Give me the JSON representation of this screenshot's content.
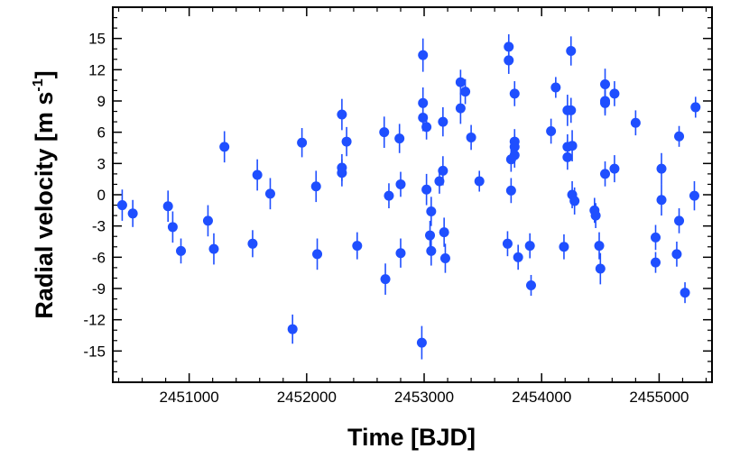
{
  "chart_data": {
    "type": "scatter",
    "title": "",
    "xlabel": "Time [BJD]",
    "ylabel_main": "Radial velocity [m s",
    "ylabel_sup": "-1",
    "ylabel_end": "]",
    "xlim": [
      2450350,
      2455450
    ],
    "ylim": [
      -18,
      18
    ],
    "xticks": [
      2451000,
      2452000,
      2453000,
      2454000,
      2455000
    ],
    "yticks": [
      15,
      12,
      9,
      6,
      3,
      0,
      -3,
      -6,
      -9,
      -12,
      -15
    ],
    "xminor_step": 200,
    "yminor_step": 1,
    "grid": false,
    "marker_color": "#1f4fff",
    "errorbar_color": "#1f4fff",
    "points": [
      {
        "x": 2450430,
        "y": -1.0,
        "err": 1.5
      },
      {
        "x": 2450520,
        "y": -1.8,
        "err": 1.3
      },
      {
        "x": 2450820,
        "y": -1.1,
        "err": 1.5
      },
      {
        "x": 2450860,
        "y": -3.1,
        "err": 1.5
      },
      {
        "x": 2450930,
        "y": -5.4,
        "err": 1.2
      },
      {
        "x": 2451160,
        "y": -2.5,
        "err": 1.5
      },
      {
        "x": 2451210,
        "y": -5.2,
        "err": 1.5
      },
      {
        "x": 2451300,
        "y": 4.6,
        "err": 1.5
      },
      {
        "x": 2451540,
        "y": -4.7,
        "err": 1.3
      },
      {
        "x": 2451580,
        "y": 1.9,
        "err": 1.5
      },
      {
        "x": 2451690,
        "y": 0.1,
        "err": 1.5
      },
      {
        "x": 2451880,
        "y": -12.9,
        "err": 1.4
      },
      {
        "x": 2451960,
        "y": 5.0,
        "err": 1.4
      },
      {
        "x": 2452080,
        "y": 0.8,
        "err": 1.5
      },
      {
        "x": 2452090,
        "y": -5.7,
        "err": 1.5
      },
      {
        "x": 2452300,
        "y": 7.7,
        "err": 1.5
      },
      {
        "x": 2452300,
        "y": 2.6,
        "err": 1.3
      },
      {
        "x": 2452300,
        "y": 2.1,
        "err": 1.3
      },
      {
        "x": 2452340,
        "y": 5.1,
        "err": 1.4
      },
      {
        "x": 2452430,
        "y": -4.9,
        "err": 1.3
      },
      {
        "x": 2452660,
        "y": 6.0,
        "err": 1.5
      },
      {
        "x": 2452670,
        "y": -8.1,
        "err": 1.5
      },
      {
        "x": 2452700,
        "y": -0.1,
        "err": 1.2
      },
      {
        "x": 2452790,
        "y": 5.4,
        "err": 1.4
      },
      {
        "x": 2452800,
        "y": 1.0,
        "err": 1.2
      },
      {
        "x": 2452800,
        "y": -5.6,
        "err": 1.4
      },
      {
        "x": 2452980,
        "y": -14.2,
        "err": 1.6
      },
      {
        "x": 2452990,
        "y": 13.4,
        "err": 1.6
      },
      {
        "x": 2452990,
        "y": 8.8,
        "err": 1.5
      },
      {
        "x": 2452990,
        "y": 7.4,
        "err": 1.3
      },
      {
        "x": 2453020,
        "y": 6.5,
        "err": 1.2
      },
      {
        "x": 2453020,
        "y": 0.5,
        "err": 1.5
      },
      {
        "x": 2453050,
        "y": -3.9,
        "err": 1.4
      },
      {
        "x": 2453060,
        "y": -1.6,
        "err": 1.4
      },
      {
        "x": 2453060,
        "y": -5.4,
        "err": 1.4
      },
      {
        "x": 2453130,
        "y": 1.3,
        "err": 1.2
      },
      {
        "x": 2453160,
        "y": 2.3,
        "err": 1.4
      },
      {
        "x": 2453160,
        "y": 7.0,
        "err": 1.4
      },
      {
        "x": 2453170,
        "y": -3.6,
        "err": 1.4
      },
      {
        "x": 2453180,
        "y": -6.1,
        "err": 1.4
      },
      {
        "x": 2453310,
        "y": 10.8,
        "err": 1.2
      },
      {
        "x": 2453310,
        "y": 8.3,
        "err": 1.5
      },
      {
        "x": 2453350,
        "y": 9.9,
        "err": 1.2
      },
      {
        "x": 2453400,
        "y": 5.5,
        "err": 1.2
      },
      {
        "x": 2453470,
        "y": 1.3,
        "err": 1.0
      },
      {
        "x": 2453720,
        "y": 14.2,
        "err": 1.2
      },
      {
        "x": 2453720,
        "y": 12.9,
        "err": 1.3
      },
      {
        "x": 2453710,
        "y": -4.7,
        "err": 1.2
      },
      {
        "x": 2453740,
        "y": 0.4,
        "err": 1.2
      },
      {
        "x": 2453740,
        "y": 3.4,
        "err": 1.2
      },
      {
        "x": 2453770,
        "y": 9.7,
        "err": 1.2
      },
      {
        "x": 2453770,
        "y": 5.1,
        "err": 1.2
      },
      {
        "x": 2453770,
        "y": 4.6,
        "err": 1.2
      },
      {
        "x": 2453770,
        "y": 3.8,
        "err": 1.2
      },
      {
        "x": 2453800,
        "y": -6.0,
        "err": 1.2
      },
      {
        "x": 2453900,
        "y": -4.9,
        "err": 1.2
      },
      {
        "x": 2453910,
        "y": -8.7,
        "err": 1.0
      },
      {
        "x": 2454080,
        "y": 6.1,
        "err": 1.2
      },
      {
        "x": 2454120,
        "y": 10.3,
        "err": 1.0
      },
      {
        "x": 2454190,
        "y": -5.0,
        "err": 1.2
      },
      {
        "x": 2454220,
        "y": 8.1,
        "err": 1.5
      },
      {
        "x": 2454220,
        "y": 4.6,
        "err": 1.2
      },
      {
        "x": 2454220,
        "y": 3.6,
        "err": 1.2
      },
      {
        "x": 2454250,
        "y": 13.8,
        "err": 1.4
      },
      {
        "x": 2454250,
        "y": 8.1,
        "err": 1.2
      },
      {
        "x": 2454260,
        "y": 4.7,
        "err": 1.5
      },
      {
        "x": 2454260,
        "y": 0.0,
        "err": 1.3
      },
      {
        "x": 2454280,
        "y": -0.6,
        "err": 1.3
      },
      {
        "x": 2454450,
        "y": -1.5,
        "err": 1.2
      },
      {
        "x": 2454460,
        "y": -2.0,
        "err": 1.2
      },
      {
        "x": 2454490,
        "y": -4.9,
        "err": 1.3
      },
      {
        "x": 2454500,
        "y": -7.1,
        "err": 1.5
      },
      {
        "x": 2454540,
        "y": 10.6,
        "err": 1.5
      },
      {
        "x": 2454540,
        "y": 9.0,
        "err": 1.2
      },
      {
        "x": 2454540,
        "y": 8.8,
        "err": 1.2
      },
      {
        "x": 2454540,
        "y": 2.0,
        "err": 1.2
      },
      {
        "x": 2454620,
        "y": 9.7,
        "err": 1.2
      },
      {
        "x": 2454620,
        "y": 2.5,
        "err": 1.3
      },
      {
        "x": 2454800,
        "y": 6.9,
        "err": 1.2
      },
      {
        "x": 2454970,
        "y": -4.1,
        "err": 1.2
      },
      {
        "x": 2454970,
        "y": -6.5,
        "err": 1.0
      },
      {
        "x": 2455020,
        "y": 2.5,
        "err": 1.5
      },
      {
        "x": 2455020,
        "y": -0.5,
        "err": 1.5
      },
      {
        "x": 2455170,
        "y": 5.6,
        "err": 1.0
      },
      {
        "x": 2455170,
        "y": -2.5,
        "err": 1.2
      },
      {
        "x": 2455150,
        "y": -5.7,
        "err": 1.2
      },
      {
        "x": 2455220,
        "y": -9.4,
        "err": 1.0
      },
      {
        "x": 2455310,
        "y": 8.4,
        "err": 1.0
      },
      {
        "x": 2455300,
        "y": -0.1,
        "err": 1.4
      }
    ]
  }
}
